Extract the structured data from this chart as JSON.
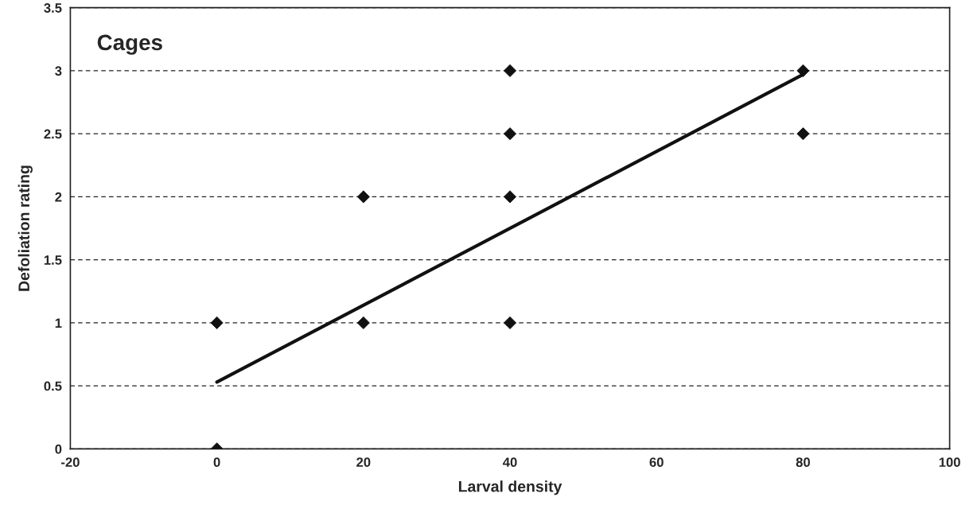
{
  "chart_data": {
    "type": "scatter",
    "title": "Cages",
    "xlabel": "Larval density",
    "ylabel": "Defoliation rating",
    "xlim": [
      -20,
      100
    ],
    "xticks": [
      -20,
      0,
      20,
      40,
      60,
      80,
      100
    ],
    "ylim": [
      0,
      3.5
    ],
    "yticks": [
      0,
      0.5,
      1,
      1.5,
      2,
      2.5,
      3,
      3.5
    ],
    "grid": "y",
    "series": [
      {
        "marker": "diamond",
        "color": "#111111",
        "x": [
          0,
          0,
          20,
          20,
          40,
          40,
          40,
          40,
          80,
          80
        ],
        "values": [
          0,
          1,
          1,
          2,
          1,
          2,
          2.5,
          3,
          2.5,
          3
        ]
      },
      {
        "type": "line",
        "marker": "none",
        "color": "#111111",
        "x": [
          0,
          80
        ],
        "values": [
          0.53,
          2.97
        ]
      }
    ]
  }
}
